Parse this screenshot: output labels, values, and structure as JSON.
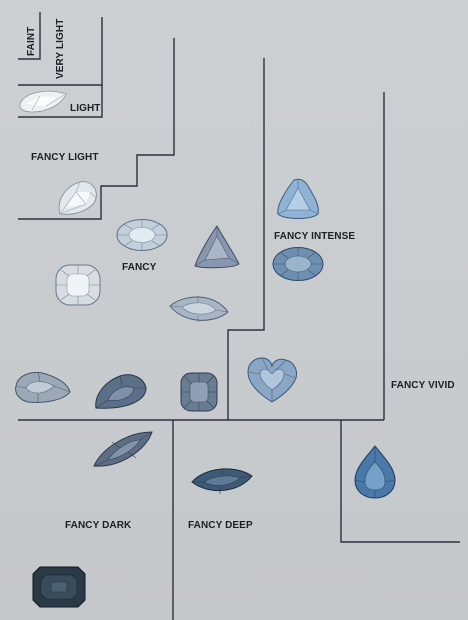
{
  "grades": {
    "faint": "FAINT",
    "very_light": "VERY LIGHT",
    "light": "LIGHT",
    "fancy_light": "FANCY LIGHT",
    "fancy": "FANCY",
    "fancy_intense": "FANCY INTENSE",
    "fancy_vivid": "FANCY VIVID",
    "fancy_dark": "FANCY DARK",
    "fancy_deep": "FANCY DEEP"
  },
  "colors": {
    "background": "#c7cacd",
    "lines": "#2a3240",
    "text": "#1b1f26"
  },
  "gems": [
    {
      "name": "pear-diamond-light",
      "shape": "pear",
      "grade": "LIGHT",
      "color": "#e8eaec"
    },
    {
      "name": "pear-diamond-fancy-light",
      "shape": "pear",
      "grade": "FANCY LIGHT",
      "color": "#dfe5ea"
    },
    {
      "name": "oval-diamond-fancy",
      "shape": "oval",
      "grade": "FANCY",
      "color": "#c2d0dc"
    },
    {
      "name": "cushion-diamond-fancy",
      "shape": "cushion",
      "grade": "FANCY",
      "color": "#d8dde2"
    },
    {
      "name": "triangle-diamond-fancy",
      "shape": "triangle",
      "grade": "FANCY",
      "color": "#8a9ab0"
    },
    {
      "name": "marquise-diamond-fancy",
      "shape": "marquise",
      "grade": "FANCY",
      "color": "#a9b6c4"
    },
    {
      "name": "trillion-diamond-fancy-intense",
      "shape": "trillion",
      "grade": "FANCY INTENSE",
      "color": "#8fb2d4"
    },
    {
      "name": "oval-diamond-fancy-intense",
      "shape": "oval",
      "grade": "FANCY INTENSE",
      "color": "#6f90b0"
    },
    {
      "name": "pear-diamond-row-1",
      "shape": "pear",
      "grade": "FANCY",
      "color": "#9aa8b6"
    },
    {
      "name": "pear-diamond-row-2",
      "shape": "pear",
      "grade": "FANCY",
      "color": "#5d7089"
    },
    {
      "name": "cushion-diamond-row-3",
      "shape": "cushion",
      "grade": "FANCY",
      "color": "#6b7d93"
    },
    {
      "name": "heart-diamond-fancy-intense",
      "shape": "heart",
      "grade": "FANCY INTENSE",
      "color": "#8ba7c5"
    },
    {
      "name": "marquise-diamond-fancy-dark",
      "shape": "marquise",
      "grade": "FANCY DARK",
      "color": "#5c6c82"
    },
    {
      "name": "marquise-diamond-fancy-deep",
      "shape": "marquise",
      "grade": "FANCY DEEP",
      "color": "#3f5a76"
    },
    {
      "name": "pear-diamond-fancy-vivid",
      "shape": "pear",
      "grade": "FANCY VIVID",
      "color": "#4a78a8"
    },
    {
      "name": "emerald-cut-diamond-fancy-dark",
      "shape": "emerald",
      "grade": "FANCY DARK",
      "color": "#2a3a46"
    }
  ]
}
